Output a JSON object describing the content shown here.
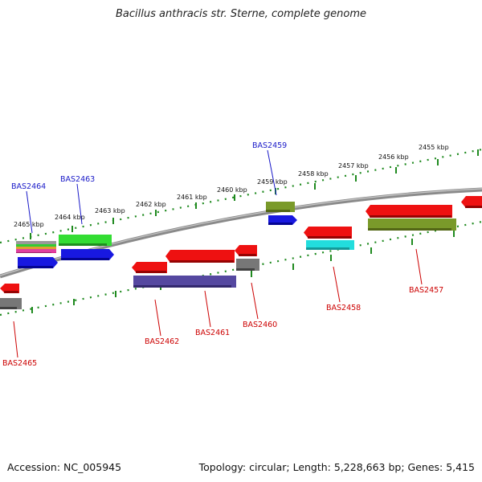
{
  "title": "Bacillus anthracis str. Sterne, complete genome",
  "footer": {
    "accession": "Accession: NC_005945",
    "summary": "Topology: circular; Length: 5,228,663 bp; Genes: 5,415"
  },
  "colors": {
    "backbone": "#8a8a8a",
    "tick": "#1f8a1f",
    "label_forward": "#1a1ac8",
    "label_reverse": "#cc0000"
  },
  "ruler_labels": [
    "2465 kbp",
    "2464 kbp",
    "2463 kbp",
    "2462 kbp",
    "2461 kbp",
    "2460 kbp",
    "2459 kbp",
    "2458 kbp",
    "2457 kbp",
    "2456 kbp",
    "2455 kbp"
  ],
  "gene_labels": {
    "forward": [
      "BAS2464",
      "BAS2463",
      "BAS2459"
    ],
    "reverse": [
      "BAS2465",
      "BAS2462",
      "BAS2461",
      "BAS2460",
      "BAS2458",
      "BAS2457"
    ]
  }
}
